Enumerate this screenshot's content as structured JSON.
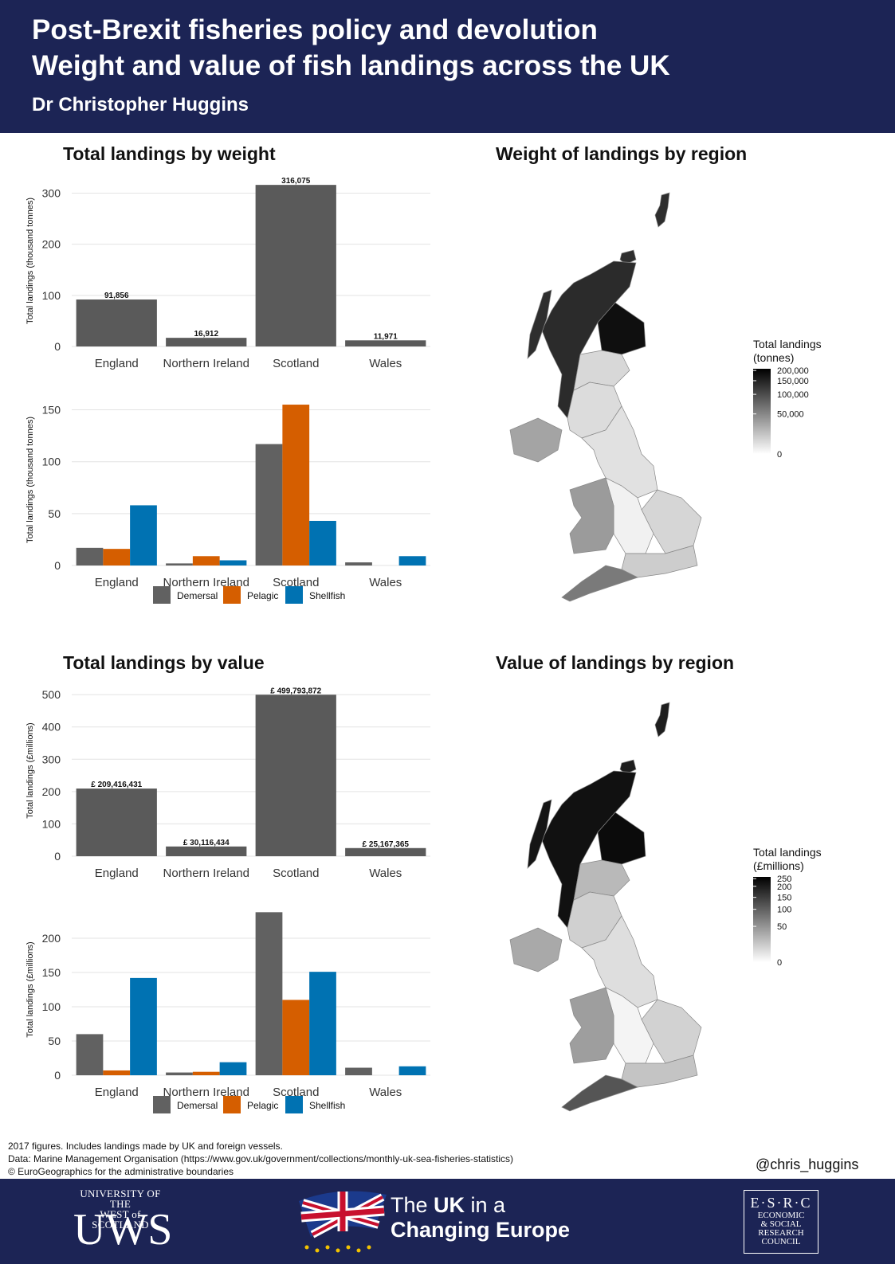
{
  "header": {
    "title_line1": "Post-Brexit fisheries policy and devolution",
    "title_line2": "Weight and value of fish landings across the UK",
    "author": "Dr Christopher Huggins"
  },
  "colors": {
    "header_bg": "#1c2455",
    "bar_total": "#5a5a5a",
    "demersal": "#616161",
    "pelagic": "#d55e00",
    "shellfish": "#0072b2"
  },
  "panels": {
    "weight_title": "Total landings by weight",
    "value_title": "Total landings by value",
    "weight_map_title": "Weight of landings by region",
    "value_map_title": "Value of landings by region"
  },
  "chart_data": [
    {
      "type": "bar",
      "categories": [
        "England",
        "Northern Ireland",
        "Scotland",
        "Wales"
      ],
      "values": [
        91.856,
        16.912,
        316.075,
        11.971
      ],
      "data_labels": [
        "91,856",
        "16,912",
        "316,075",
        "11,971"
      ],
      "ylabel": "Total landings (thousand tonnes)",
      "ylim": [
        0,
        335
      ],
      "yticks": [
        0,
        100,
        200,
        300
      ]
    },
    {
      "type": "bar",
      "categories": [
        "England",
        "Northern Ireland",
        "Scotland",
        "Wales"
      ],
      "series": [
        {
          "name": "Demersal",
          "values": [
            17,
            2,
            117,
            3
          ]
        },
        {
          "name": "Pelagic",
          "values": [
            16,
            9,
            155,
            0
          ]
        },
        {
          "name": "Shellfish",
          "values": [
            58,
            5,
            43,
            9
          ]
        }
      ],
      "ylabel": "Total landings (thousand tonnes)",
      "ylim": [
        0,
        165
      ],
      "yticks": [
        0,
        50,
        100,
        150
      ],
      "legend": "bottom"
    },
    {
      "type": "bar",
      "categories": [
        "England",
        "Northern Ireland",
        "Scotland",
        "Wales"
      ],
      "values": [
        209.416431,
        30.116434,
        499.793872,
        25.167365
      ],
      "data_labels": [
        "£ 209,416,431",
        "£  30,116,434",
        "£ 499,793,872",
        "£  25,167,365"
      ],
      "ylabel": "Total landings (£millions)",
      "ylim": [
        0,
        530
      ],
      "yticks": [
        0,
        100,
        200,
        300,
        400,
        500
      ]
    },
    {
      "type": "bar",
      "categories": [
        "England",
        "Northern Ireland",
        "Scotland",
        "Wales"
      ],
      "series": [
        {
          "name": "Demersal",
          "values": [
            60,
            4,
            238,
            11
          ]
        },
        {
          "name": "Pelagic",
          "values": [
            7,
            5,
            110,
            0
          ]
        },
        {
          "name": "Shellfish",
          "values": [
            142,
            19,
            151,
            13
          ]
        }
      ],
      "ylabel": "Total landings (£millions)",
      "ylim": [
        0,
        250
      ],
      "yticks": [
        0,
        50,
        100,
        150,
        200
      ],
      "legend": "bottom"
    }
  ],
  "maps": {
    "weight": {
      "legend_title": [
        "Total landings",
        "(tonnes)"
      ],
      "ticks": [
        "200,000",
        "150,000",
        "100,000",
        "50,000",
        "0"
      ]
    },
    "value": {
      "legend_title": [
        "Total landings",
        "(£millions)"
      ],
      "ticks": [
        "250",
        "200",
        "150",
        "100",
        "50",
        "0"
      ]
    }
  },
  "notes": {
    "line1": "2017 figures. Includes landings made by UK and foreign vessels.",
    "line2": "Data: Marine Management Organisation (https://www.gov.uk/government/collections/monthly-uk-sea-fisheries-statistics)",
    "line3": "© EuroGeographics for the administrative boundaries"
  },
  "handle": "@chris_huggins",
  "footer": {
    "uws_line1": "UNIVERSITY OF THE",
    "uws_line2": "WEST of SCOTLAND",
    "uws_logo": "UWS",
    "ukice_line1_pre": "The ",
    "ukice_line1_bold": "UK",
    "ukice_line1_post": " in a",
    "ukice_line2": "Changing Europe",
    "esrc_logo": "E·S·R·C",
    "esrc_name": [
      "ECONOMIC",
      "& SOCIAL",
      "RESEARCH",
      "COUNCIL"
    ]
  }
}
